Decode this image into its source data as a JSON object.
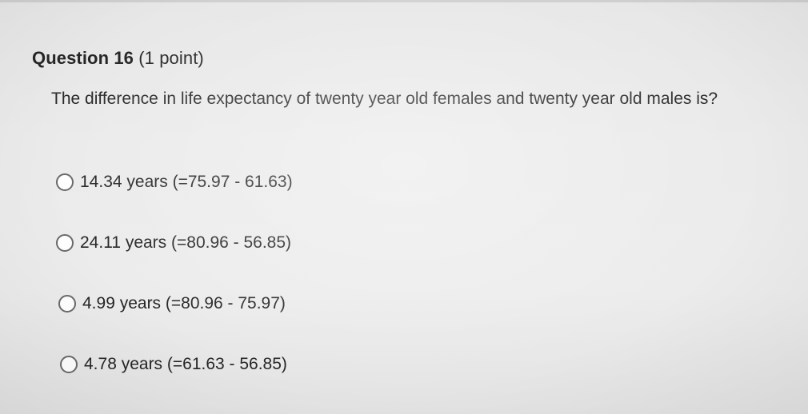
{
  "question": {
    "title": "Question 16",
    "points": "(1 point)",
    "text": "The difference in life expectancy of twenty year old females and twenty year old males is?"
  },
  "options": [
    {
      "label": "14.34 years (=75.97 - 61.63)",
      "selected": false
    },
    {
      "label": "24.11 years (=80.96 - 56.85)",
      "selected": false
    },
    {
      "label": "4.99 years (=80.96 - 75.97)",
      "selected": false
    },
    {
      "label": "4.78 years (=61.63 - 56.85)",
      "selected": false
    }
  ]
}
